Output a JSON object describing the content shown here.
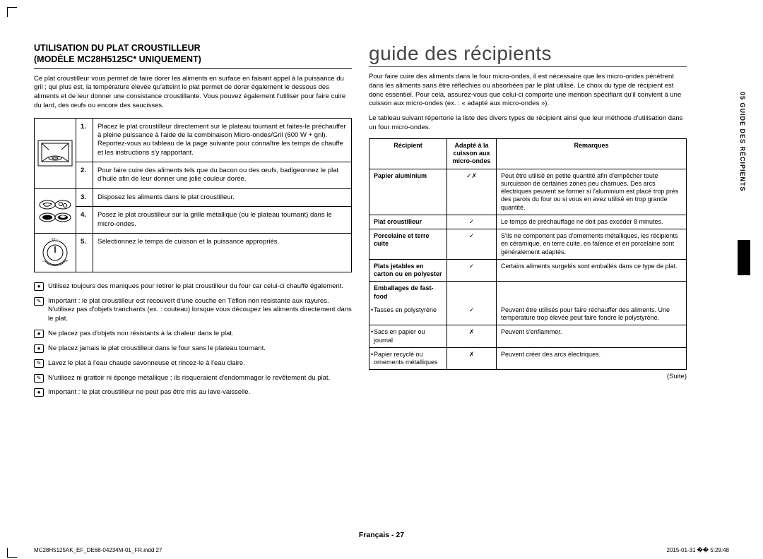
{
  "left": {
    "title_line1": "UTILISATION DU PLAT CROUSTILLEUR",
    "title_line2": "(MODÈLE MC28H5125C* UNIQUEMENT)",
    "intro": "Ce plat croustilleur vous permet de faire dorer les aliments en surface en faisant appel à la puissance du gril ; qui plus est, la température élevée qu'atteint le plat permet de dorer également le dessous des aliments et de leur donner une consistance croustillante. Vous pouvez également l'utiliser pour faire cuire du lard, des œufs ou encore des saucisses.",
    "steps": [
      {
        "n": "1.",
        "text": "Placez le plat croustilleur directement sur le plateau tournant et faites-le préchauffer à pleine puissance à l'aide de la combinaison Micro-ondes/Gril (600 W + gril). Reportez-vous au tableau de la page suivante pour connaître les temps de chauffe et les instructions s'y rapportant."
      },
      {
        "n": "2.",
        "text": "Pour faire cuire des aliments tels que du bacon ou des œufs, badigeonnez le plat d'huile afin de leur donner une jolie couleur dorée."
      },
      {
        "n": "3.",
        "text": "Disposez les aliments dans le plat croustilleur."
      },
      {
        "n": "4.",
        "text": "Posez le plat croustilleur sur la grille métallique (ou le plateau tournant) dans le micro-ondes."
      },
      {
        "n": "5.",
        "text": "Sélectionnez le temps de cuisson et la puissance appropriés."
      }
    ],
    "notes": [
      "Utilisez toujours des maniques pour retirer le plat croustilleur du four car celui-ci chauffe également.",
      "Important : le plat croustilleur est recouvert d'une couche en Téflon non résistante aux rayures. N'utilisez pas d'objets tranchants (ex. : couteau) lorsque vous découpez les aliments directement dans le plat.",
      "Ne placez pas d'objets non résistants à la chaleur dans le plat.",
      "Ne placez jamais le plat croustilleur dans le four sans le plateau tournant.",
      "Lavez le plat à l'eau chaude savonneuse et rincez-le à l'eau claire.",
      "N'utilisez ni grattoir ni éponge métallique ; ils risqueraient d'endommager le revêtement du plat.",
      "Important : le plat croustilleur ne peut pas être mis au lave-vaisselle."
    ]
  },
  "right": {
    "title": "guide des récipients",
    "para1": "Pour faire cuire des aliments dans le four micro-ondes, il est nécessaire que les micro-ondes pénètrent dans les aliments sans être réfléchies ou absorbées par le plat utilisé. Le choix du type de récipient est donc essentiel. Pour cela, assurez-vous que celui-ci comporte une mention spécifiant qu'il convient à une cuisson aux micro-ondes (ex. : « adapté aux micro-ondes »).",
    "para2": "Le tableau suivant répertorie la liste des divers types de récipient ainsi que leur méthode d'utilisation dans un four micro-ondes.",
    "table": {
      "headers": [
        "Récipient",
        "Adapté à la cuisson aux micro-ondes",
        "Remarques"
      ],
      "rows": [
        {
          "name": "Papier aluminium",
          "ok": "✓✗",
          "remark": "Peut être utilisé en petite quantité afin d'empêcher toute surcuisson de certaines zones peu charnues. Des arcs électriques peuvent se former si l'aluminium est placé trop près des parois du four ou si vous en avez utilisé en trop grande quantité.",
          "bold": true
        },
        {
          "name": "Plat croustilleur",
          "ok": "✓",
          "remark": "Le temps de préchauffage ne doit pas excéder 8 minutes.",
          "bold": true
        },
        {
          "name": "Porcelaine et terre cuite",
          "ok": "✓",
          "remark": "S'ils ne comportent pas d'ornements métalliques, les récipients en céramique, en terre cuite, en faïence et en porcelaine sont généralement adaptés.",
          "bold": true
        },
        {
          "name": "Plats jetables en carton ou en polyester",
          "ok": "✓",
          "remark": "Certains aliments surgelés sont emballés dans ce type de plat.",
          "bold": true
        },
        {
          "name": "Emballages de fast-food",
          "ok": "",
          "remark": "",
          "bold": true,
          "noborder": true
        },
        {
          "name": "Tasses en polystyrène",
          "ok": "✓",
          "remark": "Peuvent être utilisés pour faire réchauffer des aliments. Une température trop élevée peut faire fondre le polystyrène.",
          "bullet": true
        },
        {
          "name": "Sacs en papier ou journal",
          "ok": "✗",
          "remark": "Peuvent s'enflammer.",
          "bullet": true
        },
        {
          "name": "Papier recyclé ou ornements métalliques",
          "ok": "✗",
          "remark": "Peuvent créer des arcs électriques.",
          "bullet": true
        }
      ]
    },
    "suite": "(Suite)"
  },
  "sidebar": "05  GUIDE DES RÉCIPIENTS",
  "footer_center": "Français - 27",
  "footer_left": "MC28H5125AK_EF_DE68-04234M-01_FR.indd   27",
  "footer_right": "2015-01-31   �� 5:29:48"
}
